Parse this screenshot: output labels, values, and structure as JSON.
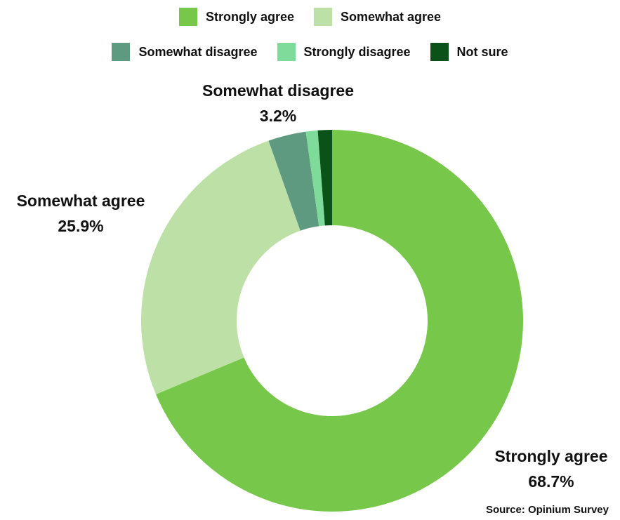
{
  "chart_data": {
    "type": "pie",
    "variant": "donut",
    "title": "",
    "categories": [
      "Strongly agree",
      "Somewhat agree",
      "Somewhat disagree",
      "Strongly disagree",
      "Not sure"
    ],
    "values": [
      68.7,
      25.9,
      3.2,
      1.0,
      1.2
    ],
    "colors": [
      "#77c84a",
      "#bce0a6",
      "#5e9a80",
      "#7fdb9a",
      "#0b5219"
    ],
    "data_labels": [
      {
        "category": "Strongly agree",
        "value": "68.7%"
      },
      {
        "category": "Somewhat agree",
        "value": "25.9%"
      },
      {
        "category": "Somewhat disagree",
        "value": "3.2%"
      }
    ],
    "legend": {
      "placement": "top",
      "entries": [
        "Strongly agree",
        "Somewhat agree",
        "Somewhat disagree",
        "Strongly disagree",
        "Not sure"
      ]
    },
    "source": "Source: Opinium Survey"
  }
}
